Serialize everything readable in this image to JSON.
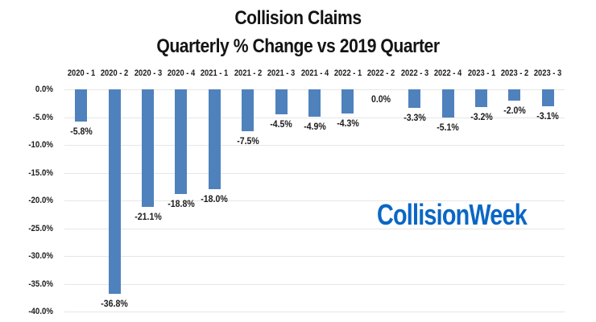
{
  "chart_data": {
    "type": "bar",
    "title": "Collision Claims",
    "subtitle": "Quarterly % Change vs 2019 Quarter",
    "categories": [
      "2020 - 1",
      "2020 - 2",
      "2020 - 3",
      "2020 - 4",
      "2021 - 1",
      "2021 - 2",
      "2021 - 3",
      "2021 - 4",
      "2022 - 1",
      "2022 - 2",
      "2022 - 3",
      "2022 - 4",
      "2023 - 1",
      "2023 - 2",
      "2023 - 3"
    ],
    "values": [
      -5.8,
      -36.8,
      -21.1,
      -18.8,
      -18.0,
      -7.5,
      -4.5,
      -4.9,
      -4.3,
      0.0,
      -3.3,
      -5.1,
      -3.2,
      -2.0,
      -3.1
    ],
    "data_labels": [
      "-5.8%",
      "-36.8%",
      "-21.1%",
      "-18.8%",
      "-18.0%",
      "-7.5%",
      "-4.5%",
      "-4.9%",
      "-4.3%",
      "0.0%",
      "-3.3%",
      "-5.1%",
      "-3.2%",
      "-2.0%",
      "-3.1%"
    ],
    "y_ticks": [
      "0.0%",
      "-5.0%",
      "-10.0%",
      "-15.0%",
      "-20.0%",
      "-25.0%",
      "-30.0%",
      "-35.0%",
      "-40.0%"
    ],
    "y_tick_values": [
      0,
      -5,
      -10,
      -15,
      -20,
      -25,
      -30,
      -35,
      -40
    ],
    "ylim": [
      -40,
      0
    ],
    "xlabel": "",
    "ylabel": "",
    "grid": true,
    "legend_position": "none",
    "category_axis_position": "top",
    "bar_color": "#4f81bd",
    "gridline_color": "#e6e6e6",
    "text_color": "#1c1c1c"
  },
  "watermark": {
    "text": "CollisionWeek",
    "color": "#0a67c5"
  }
}
